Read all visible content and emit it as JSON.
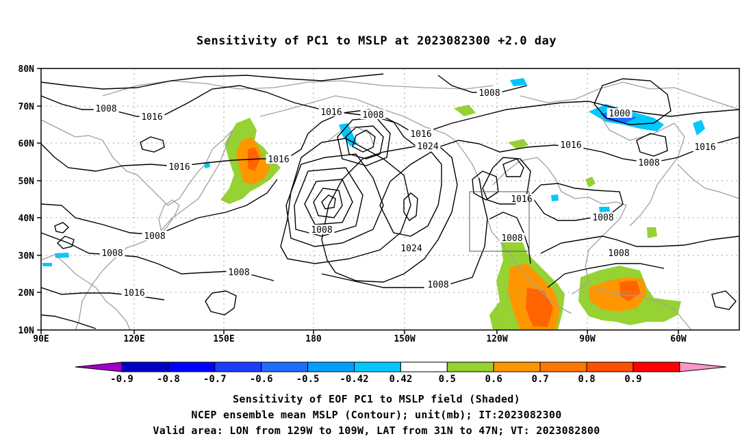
{
  "title": "Sensitivity of PC1 to MSLP at 2023082300 +2.0 day",
  "map": {
    "lat_labels": [
      "80N",
      "70N",
      "60N",
      "50N",
      "40N",
      "30N",
      "20N",
      "10N"
    ],
    "lon_labels": [
      "90E",
      "120E",
      "150E",
      "180",
      "150W",
      "120W",
      "90W",
      "60W"
    ],
    "contour_labels": [
      "1008",
      "1016",
      "1008",
      "1016",
      "1008",
      "1016",
      "1024",
      "1016",
      "1000",
      "1016",
      "1008",
      "1016",
      "1016",
      "1008",
      "1008",
      "1008",
      "1008",
      "1016",
      "1024",
      "1008",
      "1008",
      "1016",
      "1016",
      "1008",
      "1008"
    ],
    "valid_area": {
      "lon_from": "129W",
      "lon_to": "109W",
      "lat_from": "31N",
      "lat_to": "47N"
    },
    "shading_colors": {
      "negative_strong": "#0000c8",
      "negative_mid": "#1e6eff",
      "negative_weak": "#00c8ff",
      "positive_weak": "#96d232",
      "positive_mid": "#ff9600",
      "positive_strong": "#ff6400",
      "coast": "#a0a0a0",
      "grid": "#a0a0a0"
    }
  },
  "colorbar": {
    "labels": [
      "-0.9",
      "-0.8",
      "-0.7",
      "-0.6",
      "-0.5",
      "-0.42",
      "0.42",
      "0.5",
      "0.6",
      "0.7",
      "0.8",
      "0.9"
    ],
    "colors": [
      "#a000c8",
      "#0000c8",
      "#0000ff",
      "#1e3cff",
      "#1e6eff",
      "#00a0ff",
      "#00c8ff",
      "#ffffff",
      "#96d232",
      "#ff9600",
      "#ff7800",
      "#ff5000",
      "#ff0000",
      "#ff96c8"
    ]
  },
  "footer": {
    "line1": "Sensitivity of EOF PC1 to MSLP field (Shaded)",
    "line2": "NCEP ensemble mean MSLP (Contour); unit(mb); IT:2023082300",
    "line3": "Valid area: LON from 129W to 109W, LAT from 31N to 47N; VT: 2023082800"
  }
}
